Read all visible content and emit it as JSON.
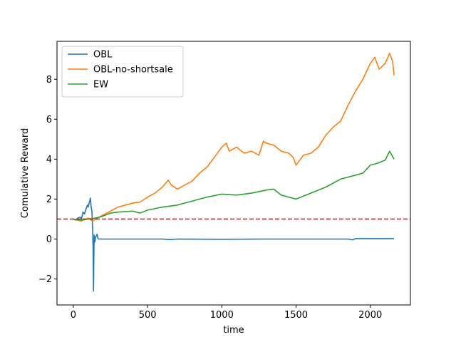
{
  "chart_data": {
    "type": "line",
    "title": "",
    "xlabel": "time",
    "ylabel": "Comulative Reward",
    "xlim": [
      -110,
      2270
    ],
    "ylim": [
      -3.3,
      9.9
    ],
    "xticks": [
      0,
      500,
      1000,
      1500,
      2000
    ],
    "yticks": [
      -2,
      0,
      2,
      4,
      6,
      8
    ],
    "ytick_labels": [
      "−2",
      "0",
      "2",
      "4",
      "6",
      "8"
    ],
    "legend_position": "top-left",
    "grid": false,
    "reference_line": {
      "y": 1.0,
      "color": "#d62728",
      "style": "dashed"
    },
    "series": [
      {
        "name": "OBL",
        "color": "#1f77b4",
        "points": [
          [
            0,
            1.0
          ],
          [
            15,
            0.95
          ],
          [
            30,
            1.05
          ],
          [
            45,
            1.1
          ],
          [
            55,
            1.0
          ],
          [
            65,
            1.35
          ],
          [
            75,
            1.25
          ],
          [
            85,
            1.5
          ],
          [
            95,
            1.7
          ],
          [
            100,
            1.6
          ],
          [
            108,
            1.85
          ],
          [
            115,
            2.05
          ],
          [
            120,
            1.6
          ],
          [
            125,
            1.4
          ],
          [
            130,
            0.5
          ],
          [
            133,
            -0.5
          ],
          [
            136,
            -2.6
          ],
          [
            138,
            -1.0
          ],
          [
            140,
            0.2
          ],
          [
            145,
            -0.15
          ],
          [
            150,
            0.1
          ],
          [
            155,
            0.15
          ],
          [
            160,
            0.25
          ],
          [
            165,
            0.05
          ],
          [
            170,
            0.0
          ],
          [
            300,
            0.0
          ],
          [
            600,
            0.0
          ],
          [
            650,
            -0.03
          ],
          [
            700,
            0.0
          ],
          [
            1000,
            -0.01
          ],
          [
            1300,
            0.0
          ],
          [
            1600,
            0.0
          ],
          [
            1850,
            0.0
          ],
          [
            1880,
            -0.04
          ],
          [
            1900,
            0.02
          ],
          [
            2000,
            0.02
          ],
          [
            2160,
            0.02
          ]
        ]
      },
      {
        "name": "OBL-no-shortsale",
        "color": "#ff7f0e",
        "points": [
          [
            0,
            1.0
          ],
          [
            50,
            0.9
          ],
          [
            100,
            1.05
          ],
          [
            130,
            0.9
          ],
          [
            150,
            1.0
          ],
          [
            200,
            1.2
          ],
          [
            250,
            1.4
          ],
          [
            300,
            1.6
          ],
          [
            400,
            1.8
          ],
          [
            450,
            1.85
          ],
          [
            500,
            2.1
          ],
          [
            550,
            2.3
          ],
          [
            600,
            2.6
          ],
          [
            640,
            2.95
          ],
          [
            660,
            2.7
          ],
          [
            700,
            2.5
          ],
          [
            800,
            2.9
          ],
          [
            850,
            3.3
          ],
          [
            900,
            3.6
          ],
          [
            950,
            4.1
          ],
          [
            1000,
            4.6
          ],
          [
            1030,
            4.8
          ],
          [
            1050,
            4.4
          ],
          [
            1100,
            4.6
          ],
          [
            1150,
            4.3
          ],
          [
            1200,
            4.4
          ],
          [
            1250,
            4.2
          ],
          [
            1280,
            4.9
          ],
          [
            1300,
            4.8
          ],
          [
            1350,
            4.7
          ],
          [
            1400,
            4.4
          ],
          [
            1450,
            4.3
          ],
          [
            1480,
            4.1
          ],
          [
            1500,
            3.7
          ],
          [
            1550,
            4.2
          ],
          [
            1600,
            4.3
          ],
          [
            1650,
            4.6
          ],
          [
            1700,
            5.2
          ],
          [
            1750,
            5.6
          ],
          [
            1800,
            5.9
          ],
          [
            1850,
            6.7
          ],
          [
            1900,
            7.4
          ],
          [
            1950,
            8.0
          ],
          [
            2000,
            8.8
          ],
          [
            2030,
            9.1
          ],
          [
            2060,
            8.5
          ],
          [
            2100,
            8.8
          ],
          [
            2130,
            9.3
          ],
          [
            2150,
            8.9
          ],
          [
            2160,
            8.2
          ]
        ]
      },
      {
        "name": "EW",
        "color": "#2ca02c",
        "points": [
          [
            0,
            1.0
          ],
          [
            50,
            0.95
          ],
          [
            100,
            1.0
          ],
          [
            150,
            1.05
          ],
          [
            200,
            1.15
          ],
          [
            250,
            1.3
          ],
          [
            300,
            1.35
          ],
          [
            400,
            1.4
          ],
          [
            450,
            1.3
          ],
          [
            500,
            1.45
          ],
          [
            600,
            1.6
          ],
          [
            700,
            1.7
          ],
          [
            800,
            1.9
          ],
          [
            900,
            2.1
          ],
          [
            1000,
            2.25
          ],
          [
            1100,
            2.2
          ],
          [
            1200,
            2.3
          ],
          [
            1300,
            2.45
          ],
          [
            1350,
            2.5
          ],
          [
            1400,
            2.2
          ],
          [
            1450,
            2.1
          ],
          [
            1500,
            2.0
          ],
          [
            1600,
            2.3
          ],
          [
            1700,
            2.6
          ],
          [
            1800,
            3.0
          ],
          [
            1900,
            3.2
          ],
          [
            1950,
            3.3
          ],
          [
            2000,
            3.7
          ],
          [
            2050,
            3.8
          ],
          [
            2100,
            3.95
          ],
          [
            2130,
            4.4
          ],
          [
            2160,
            4.0
          ]
        ]
      }
    ]
  }
}
